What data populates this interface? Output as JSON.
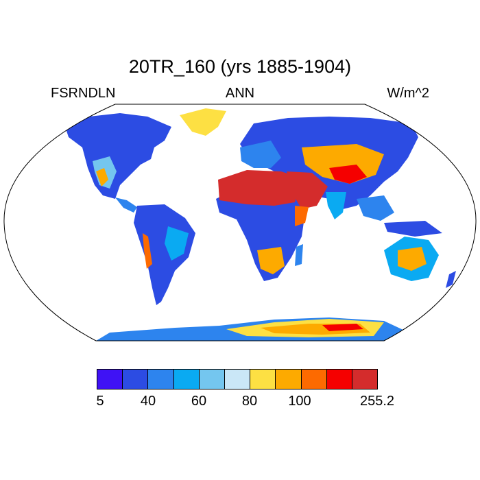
{
  "title": "20TR_160 (yrs 1885-1904)",
  "left_label": "FSRNDLN",
  "center_label": "ANN",
  "right_label": "W/m^2",
  "colorbar": {
    "colors": [
      "#3f12f5",
      "#2c4ce3",
      "#2d84ee",
      "#0aaaf2",
      "#74c6ef",
      "#cae7f7",
      "#fde043",
      "#fdaa00",
      "#fd6a00",
      "#f50000",
      "#d42c2c"
    ],
    "tick_labels": [
      "5",
      "40",
      "60",
      "80",
      "100",
      "255.2"
    ]
  },
  "map": {
    "projection": "Robinson",
    "ocean_color": "#ffffff",
    "coast_color": "#000000"
  }
}
